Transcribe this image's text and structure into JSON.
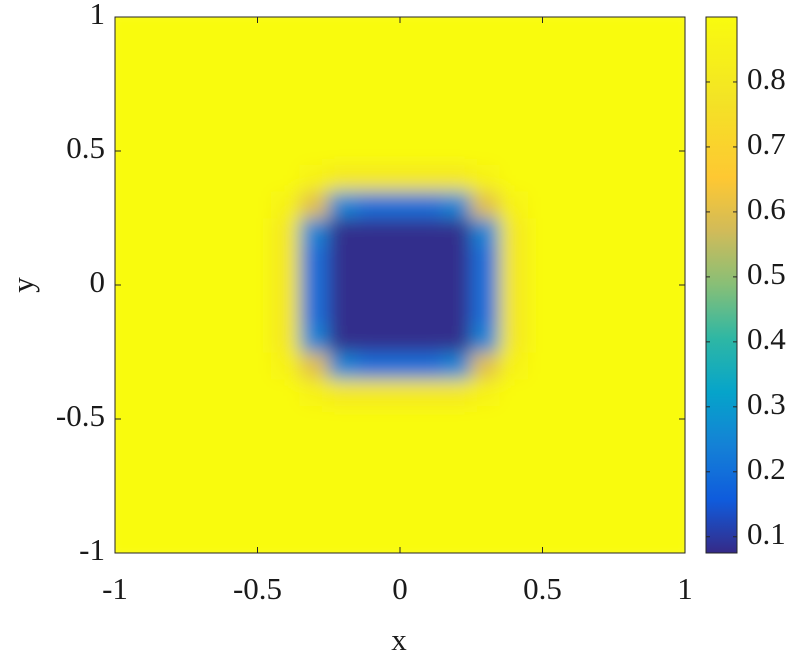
{
  "chart_data": {
    "type": "heatmap",
    "xlabel": "x",
    "ylabel": "y",
    "x": [
      -1,
      -0.9,
      -0.8,
      -0.7,
      -0.6,
      -0.5,
      -0.4,
      -0.3,
      -0.2,
      -0.1,
      0,
      0.1,
      0.2,
      0.3,
      0.4,
      0.5,
      0.6,
      0.7,
      0.8,
      0.9,
      1
    ],
    "y": [
      -1,
      -0.9,
      -0.8,
      -0.7,
      -0.6,
      -0.5,
      -0.4,
      -0.3,
      -0.2,
      -0.1,
      0,
      0.1,
      0.2,
      0.3,
      0.4,
      0.5,
      0.6,
      0.7,
      0.8,
      0.9,
      1
    ],
    "z": [
      [
        0.9,
        0.9,
        0.9,
        0.9,
        0.9,
        0.9,
        0.9,
        0.9,
        0.9,
        0.9,
        0.9,
        0.9,
        0.9,
        0.9,
        0.9,
        0.9,
        0.9,
        0.9,
        0.9,
        0.9,
        0.9
      ],
      [
        0.9,
        0.9,
        0.9,
        0.9,
        0.9,
        0.9,
        0.9,
        0.9,
        0.9,
        0.9,
        0.9,
        0.9,
        0.9,
        0.9,
        0.9,
        0.9,
        0.9,
        0.9,
        0.9,
        0.9,
        0.9
      ],
      [
        0.9,
        0.9,
        0.9,
        0.9,
        0.9,
        0.9,
        0.9,
        0.9,
        0.9,
        0.9,
        0.9,
        0.9,
        0.9,
        0.9,
        0.9,
        0.9,
        0.9,
        0.9,
        0.9,
        0.9,
        0.9
      ],
      [
        0.9,
        0.9,
        0.9,
        0.9,
        0.9,
        0.9,
        0.9,
        0.9,
        0.9,
        0.9,
        0.9,
        0.9,
        0.9,
        0.9,
        0.9,
        0.9,
        0.9,
        0.9,
        0.9,
        0.9,
        0.9
      ],
      [
        0.9,
        0.9,
        0.9,
        0.9,
        0.9,
        0.9,
        0.9,
        0.9,
        0.9,
        0.9,
        0.9,
        0.9,
        0.9,
        0.9,
        0.9,
        0.9,
        0.9,
        0.9,
        0.9,
        0.9,
        0.9
      ],
      [
        0.9,
        0.9,
        0.9,
        0.9,
        0.9,
        0.9,
        0.9,
        0.9,
        0.9,
        0.9,
        0.9,
        0.9,
        0.9,
        0.9,
        0.9,
        0.9,
        0.9,
        0.9,
        0.9,
        0.9,
        0.9
      ],
      [
        0.9,
        0.9,
        0.9,
        0.9,
        0.9,
        0.9,
        0.9,
        0.85,
        0.8,
        0.8,
        0.8,
        0.8,
        0.8,
        0.85,
        0.9,
        0.9,
        0.9,
        0.9,
        0.9,
        0.9,
        0.9
      ],
      [
        0.9,
        0.9,
        0.9,
        0.9,
        0.9,
        0.9,
        0.85,
        0.6,
        0.25,
        0.2,
        0.2,
        0.2,
        0.25,
        0.6,
        0.85,
        0.9,
        0.9,
        0.9,
        0.9,
        0.9,
        0.9
      ],
      [
        0.9,
        0.9,
        0.9,
        0.9,
        0.9,
        0.9,
        0.8,
        0.25,
        0.08,
        0.08,
        0.08,
        0.08,
        0.08,
        0.25,
        0.8,
        0.9,
        0.9,
        0.9,
        0.9,
        0.9,
        0.9
      ],
      [
        0.9,
        0.9,
        0.9,
        0.9,
        0.9,
        0.9,
        0.8,
        0.2,
        0.08,
        0.08,
        0.08,
        0.08,
        0.08,
        0.2,
        0.8,
        0.9,
        0.9,
        0.9,
        0.9,
        0.9,
        0.9
      ],
      [
        0.9,
        0.9,
        0.9,
        0.9,
        0.9,
        0.9,
        0.8,
        0.2,
        0.08,
        0.08,
        0.08,
        0.08,
        0.08,
        0.2,
        0.8,
        0.9,
        0.9,
        0.9,
        0.9,
        0.9,
        0.9
      ],
      [
        0.9,
        0.9,
        0.9,
        0.9,
        0.9,
        0.9,
        0.8,
        0.2,
        0.08,
        0.08,
        0.08,
        0.08,
        0.08,
        0.2,
        0.8,
        0.9,
        0.9,
        0.9,
        0.9,
        0.9,
        0.9
      ],
      [
        0.9,
        0.9,
        0.9,
        0.9,
        0.9,
        0.9,
        0.8,
        0.25,
        0.08,
        0.08,
        0.08,
        0.08,
        0.08,
        0.25,
        0.8,
        0.9,
        0.9,
        0.9,
        0.9,
        0.9,
        0.9
      ],
      [
        0.9,
        0.9,
        0.9,
        0.9,
        0.9,
        0.9,
        0.85,
        0.6,
        0.25,
        0.2,
        0.2,
        0.2,
        0.25,
        0.6,
        0.85,
        0.9,
        0.9,
        0.9,
        0.9,
        0.9,
        0.9
      ],
      [
        0.9,
        0.9,
        0.9,
        0.9,
        0.9,
        0.9,
        0.9,
        0.85,
        0.8,
        0.8,
        0.8,
        0.8,
        0.8,
        0.85,
        0.9,
        0.9,
        0.9,
        0.9,
        0.9,
        0.9,
        0.9
      ],
      [
        0.9,
        0.9,
        0.9,
        0.9,
        0.9,
        0.9,
        0.9,
        0.9,
        0.9,
        0.9,
        0.9,
        0.9,
        0.9,
        0.9,
        0.9,
        0.9,
        0.9,
        0.9,
        0.9,
        0.9,
        0.9
      ],
      [
        0.9,
        0.9,
        0.9,
        0.9,
        0.9,
        0.9,
        0.9,
        0.9,
        0.9,
        0.9,
        0.9,
        0.9,
        0.9,
        0.9,
        0.9,
        0.9,
        0.9,
        0.9,
        0.9,
        0.9,
        0.9
      ],
      [
        0.9,
        0.9,
        0.9,
        0.9,
        0.9,
        0.9,
        0.9,
        0.9,
        0.9,
        0.9,
        0.9,
        0.9,
        0.9,
        0.9,
        0.9,
        0.9,
        0.9,
        0.9,
        0.9,
        0.9,
        0.9
      ],
      [
        0.9,
        0.9,
        0.9,
        0.9,
        0.9,
        0.9,
        0.9,
        0.9,
        0.9,
        0.9,
        0.9,
        0.9,
        0.9,
        0.9,
        0.9,
        0.9,
        0.9,
        0.9,
        0.9,
        0.9,
        0.9
      ],
      [
        0.9,
        0.9,
        0.9,
        0.9,
        0.9,
        0.9,
        0.9,
        0.9,
        0.9,
        0.9,
        0.9,
        0.9,
        0.9,
        0.9,
        0.9,
        0.9,
        0.9,
        0.9,
        0.9,
        0.9,
        0.9
      ],
      [
        0.9,
        0.9,
        0.9,
        0.9,
        0.9,
        0.9,
        0.9,
        0.9,
        0.9,
        0.9,
        0.9,
        0.9,
        0.9,
        0.9,
        0.9,
        0.9,
        0.9,
        0.9,
        0.9,
        0.9,
        0.9
      ]
    ],
    "xlim": [
      -1,
      1
    ],
    "xticks": [
      -1,
      -0.5,
      0,
      0.5,
      1
    ],
    "ylim": [
      -1,
      1
    ],
    "yticks": [
      -1,
      -0.5,
      0,
      0.5,
      1
    ],
    "colormap": "parula",
    "clim": [
      0.075,
      0.9
    ],
    "cticks": [
      0.1,
      0.2,
      0.3,
      0.4,
      0.5,
      0.6,
      0.7,
      0.8
    ],
    "grid": false
  }
}
